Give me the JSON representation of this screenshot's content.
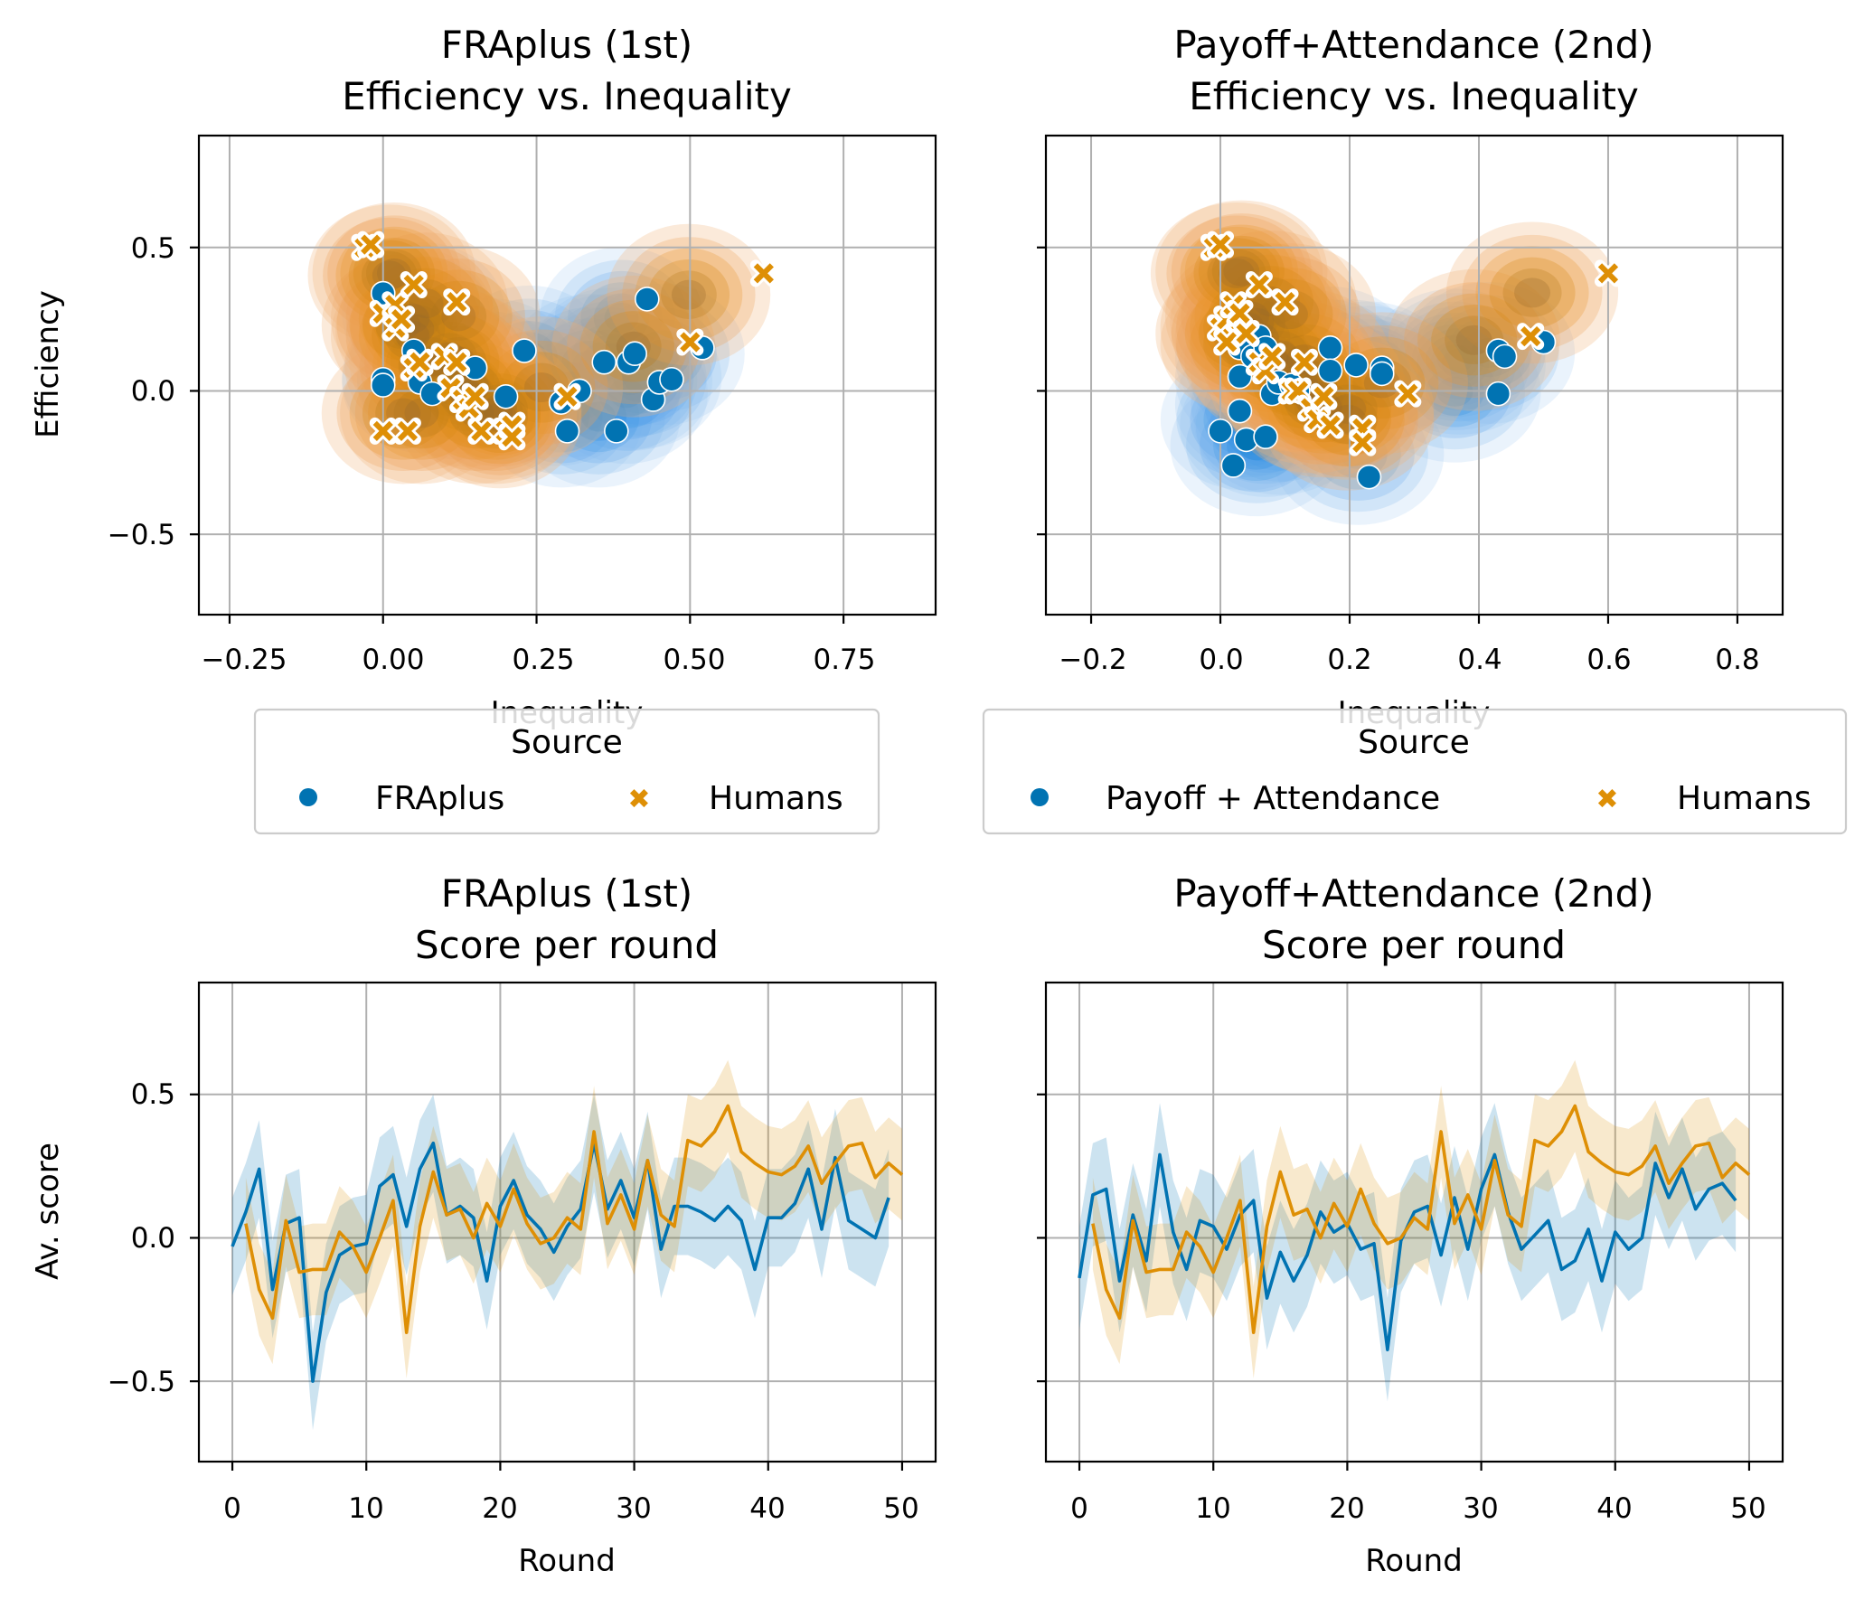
{
  "colors": {
    "blue": "#0173b2",
    "orange": "#de8f05"
  },
  "panels": {
    "scatter_left": {
      "title_line1": "FRAplus (1st)",
      "title_line2": "Efficiency vs. Inequality",
      "xlabel": "Inequality",
      "ylabel": "Efficiency",
      "xticks": [
        "−0.25",
        "0.00",
        "0.25",
        "0.50",
        "0.75"
      ],
      "yticks": [
        "−0.5",
        "0.0",
        "0.5"
      ],
      "legend": {
        "title": "Source",
        "item1": "FRAplus",
        "item2": "Humans"
      }
    },
    "scatter_right": {
      "title_line1": "Payoff+Attendance (2nd)",
      "title_line2": "Efficiency vs. Inequality",
      "xlabel": "Inequality",
      "xticks": [
        "−0.2",
        "0.0",
        "0.2",
        "0.4",
        "0.6",
        "0.8"
      ],
      "legend": {
        "title": "Source",
        "item1": "Payoff + Attendance",
        "item2": "Humans"
      }
    },
    "line_left": {
      "title_line1": "FRAplus (1st)",
      "title_line2": "Score per round",
      "xlabel": "Round",
      "ylabel": "Av. score",
      "xticks": [
        "0",
        "10",
        "20",
        "30",
        "40",
        "50"
      ],
      "yticks": [
        "−0.5",
        "0.0",
        "0.5"
      ]
    },
    "line_right": {
      "title_line1": "Payoff+Attendance (2nd)",
      "title_line2": "Score per round",
      "xlabel": "Round",
      "xticks": [
        "0",
        "10",
        "20",
        "30",
        "40",
        "50"
      ]
    }
  },
  "chart_data": [
    {
      "type": "scatter",
      "title": "FRAplus (1st)\nEfficiency vs. Inequality",
      "xlabel": "Inequality",
      "ylabel": "Efficiency",
      "xlim": [
        -0.3,
        0.9
      ],
      "ylim": [
        -0.78,
        0.89
      ],
      "grid": true,
      "kde_background": true,
      "legend": {
        "title": "Source",
        "placement": "below"
      },
      "series": [
        {
          "name": "FRAplus",
          "marker": "circle",
          "color": "#0173b2",
          "points": [
            [
              0.0,
              0.34
            ],
            [
              0.0,
              0.04
            ],
            [
              0.0,
              0.02
            ],
            [
              0.05,
              0.14
            ],
            [
              0.06,
              0.03
            ],
            [
              0.08,
              -0.01
            ],
            [
              0.15,
              0.08
            ],
            [
              0.2,
              -0.02
            ],
            [
              0.23,
              0.14
            ],
            [
              0.29,
              -0.04
            ],
            [
              0.3,
              -0.14
            ],
            [
              0.32,
              0.0
            ],
            [
              0.36,
              0.1
            ],
            [
              0.38,
              -0.14
            ],
            [
              0.4,
              0.1
            ],
            [
              0.41,
              0.13
            ],
            [
              0.43,
              0.32
            ],
            [
              0.44,
              -0.03
            ],
            [
              0.45,
              0.03
            ],
            [
              0.47,
              0.04
            ],
            [
              0.52,
              0.15
            ]
          ]
        },
        {
          "name": "Humans",
          "marker": "x",
          "color": "#de8f05",
          "points": [
            [
              -0.03,
              0.5
            ],
            [
              -0.02,
              0.51
            ],
            [
              0.0,
              0.27
            ],
            [
              0.0,
              -0.14
            ],
            [
              0.02,
              0.3
            ],
            [
              0.02,
              0.22
            ],
            [
              0.03,
              0.25
            ],
            [
              0.04,
              -0.14
            ],
            [
              0.05,
              0.37
            ],
            [
              0.05,
              0.08
            ],
            [
              0.06,
              0.1
            ],
            [
              0.1,
              0.12
            ],
            [
              0.11,
              0.01
            ],
            [
              0.12,
              0.1
            ],
            [
              0.12,
              0.31
            ],
            [
              0.13,
              -0.03
            ],
            [
              0.14,
              -0.06
            ],
            [
              0.15,
              -0.02
            ],
            [
              0.16,
              -0.14
            ],
            [
              0.2,
              -0.14
            ],
            [
              0.21,
              -0.12
            ],
            [
              0.21,
              -0.16
            ],
            [
              0.3,
              -0.02
            ],
            [
              0.5,
              0.17
            ],
            [
              0.62,
              0.41
            ]
          ]
        }
      ]
    },
    {
      "type": "scatter",
      "title": "Payoff+Attendance (2nd)\nEfficiency vs. Inequality",
      "xlabel": "Inequality",
      "ylabel": "",
      "xlim": [
        -0.27,
        0.87
      ],
      "ylim": [
        -0.78,
        0.89
      ],
      "grid": true,
      "kde_background": true,
      "legend": {
        "title": "Source",
        "placement": "below"
      },
      "series": [
        {
          "name": "Payoff + Attendance",
          "marker": "circle",
          "color": "#0173b2",
          "points": [
            [
              0.0,
              -0.14
            ],
            [
              0.02,
              -0.26
            ],
            [
              0.03,
              0.15
            ],
            [
              0.03,
              0.05
            ],
            [
              0.03,
              -0.07
            ],
            [
              0.04,
              -0.17
            ],
            [
              0.05,
              0.12
            ],
            [
              0.06,
              0.19
            ],
            [
              0.07,
              0.15
            ],
            [
              0.07,
              -0.16
            ],
            [
              0.08,
              -0.01
            ],
            [
              0.09,
              0.03
            ],
            [
              0.11,
              0.02
            ],
            [
              0.12,
              0.0
            ],
            [
              0.17,
              0.15
            ],
            [
              0.17,
              0.07
            ],
            [
              0.21,
              0.09
            ],
            [
              0.23,
              -0.3
            ],
            [
              0.25,
              0.08
            ],
            [
              0.25,
              0.06
            ],
            [
              0.43,
              -0.01
            ],
            [
              0.43,
              0.14
            ],
            [
              0.44,
              0.12
            ],
            [
              0.5,
              0.17
            ]
          ]
        },
        {
          "name": "Humans",
          "marker": "x",
          "color": "#de8f05",
          "points": [
            [
              -0.01,
              0.5
            ],
            [
              0.0,
              0.51
            ],
            [
              0.0,
              0.22
            ],
            [
              0.01,
              0.25
            ],
            [
              0.01,
              0.17
            ],
            [
              0.02,
              0.3
            ],
            [
              0.03,
              0.27
            ],
            [
              0.04,
              0.2
            ],
            [
              0.06,
              0.37
            ],
            [
              0.06,
              0.1
            ],
            [
              0.07,
              0.07
            ],
            [
              0.08,
              0.12
            ],
            [
              0.1,
              0.31
            ],
            [
              0.11,
              0.0
            ],
            [
              0.12,
              0.0
            ],
            [
              0.13,
              0.1
            ],
            [
              0.14,
              -0.06
            ],
            [
              0.15,
              -0.1
            ],
            [
              0.16,
              -0.02
            ],
            [
              0.17,
              -0.12
            ],
            [
              0.22,
              -0.13
            ],
            [
              0.22,
              -0.18
            ],
            [
              0.29,
              -0.01
            ],
            [
              0.48,
              0.19
            ],
            [
              0.6,
              0.41
            ]
          ]
        }
      ]
    },
    {
      "type": "line",
      "title": "FRAplus (1st)\nScore per round",
      "xlabel": "Round",
      "ylabel": "Av. score",
      "xlim": [
        -2.5,
        52.5
      ],
      "ylim": [
        -0.78,
        0.89
      ],
      "grid": true,
      "confidence_band": true,
      "series": [
        {
          "name": "FRAplus",
          "color": "#0173b2",
          "x_start": 0,
          "values": [
            -0.03,
            0.09,
            0.24,
            -0.18,
            0.05,
            0.07,
            -0.5,
            -0.19,
            -0.06,
            -0.03,
            -0.02,
            0.18,
            0.22,
            0.04,
            0.24,
            0.33,
            0.08,
            0.11,
            0.07,
            -0.15,
            0.11,
            0.2,
            0.08,
            0.03,
            -0.05,
            0.04,
            0.1,
            0.33,
            0.1,
            0.2,
            0.07,
            0.27,
            -0.04,
            0.11,
            0.11,
            0.09,
            0.06,
            0.11,
            0.06,
            -0.11,
            0.07,
            0.07,
            0.12,
            0.24,
            0.03,
            0.28,
            0.06,
            0.03,
            0.0,
            0.14
          ],
          "band_half_width": 0.17
        },
        {
          "name": "Humans",
          "color": "#de8f05",
          "x_start": 1,
          "values": [
            0.05,
            -0.18,
            -0.28,
            0.06,
            -0.12,
            -0.11,
            -0.11,
            0.02,
            -0.03,
            -0.12,
            0.0,
            0.13,
            -0.33,
            0.04,
            0.23,
            0.08,
            0.1,
            0.0,
            0.12,
            0.04,
            0.17,
            0.05,
            -0.02,
            0.0,
            0.07,
            0.03,
            0.37,
            0.05,
            0.15,
            0.03,
            0.27,
            0.08,
            0.04,
            0.34,
            0.32,
            0.37,
            0.46,
            0.3,
            0.26,
            0.23,
            0.22,
            0.25,
            0.32,
            0.19,
            0.26,
            0.32,
            0.33,
            0.21,
            0.26,
            0.22
          ],
          "band_half_width": 0.16
        }
      ]
    },
    {
      "type": "line",
      "title": "Payoff+Attendance (2nd)\nScore per round",
      "xlabel": "Round",
      "ylabel": "",
      "xlim": [
        -2.5,
        52.5
      ],
      "ylim": [
        -0.78,
        0.89
      ],
      "grid": true,
      "confidence_band": true,
      "series": [
        {
          "name": "Payoff + Attendance",
          "color": "#0173b2",
          "x_start": 0,
          "values": [
            -0.14,
            0.15,
            0.17,
            -0.15,
            0.08,
            -0.08,
            0.29,
            0.02,
            -0.11,
            0.06,
            0.04,
            -0.04,
            0.08,
            0.13,
            -0.21,
            -0.05,
            -0.15,
            -0.06,
            0.09,
            0.02,
            0.05,
            -0.04,
            -0.02,
            -0.39,
            -0.01,
            0.09,
            0.11,
            -0.06,
            0.14,
            -0.04,
            0.17,
            0.29,
            0.09,
            -0.04,
            0.01,
            0.06,
            -0.11,
            -0.08,
            0.03,
            -0.15,
            0.02,
            -0.04,
            0.0,
            0.26,
            0.14,
            0.24,
            0.1,
            0.17,
            0.19,
            0.13
          ],
          "band_half_width": 0.18
        },
        {
          "name": "Humans",
          "color": "#de8f05",
          "x_start": 1,
          "values": [
            0.05,
            -0.18,
            -0.28,
            0.06,
            -0.12,
            -0.11,
            -0.11,
            0.02,
            -0.03,
            -0.12,
            0.0,
            0.13,
            -0.33,
            0.04,
            0.23,
            0.08,
            0.1,
            0.0,
            0.12,
            0.04,
            0.17,
            0.05,
            -0.02,
            0.0,
            0.07,
            0.03,
            0.37,
            0.05,
            0.15,
            0.03,
            0.27,
            0.08,
            0.04,
            0.34,
            0.32,
            0.37,
            0.46,
            0.3,
            0.26,
            0.23,
            0.22,
            0.25,
            0.32,
            0.19,
            0.26,
            0.32,
            0.33,
            0.21,
            0.26,
            0.22
          ],
          "band_half_width": 0.16
        }
      ]
    }
  ]
}
